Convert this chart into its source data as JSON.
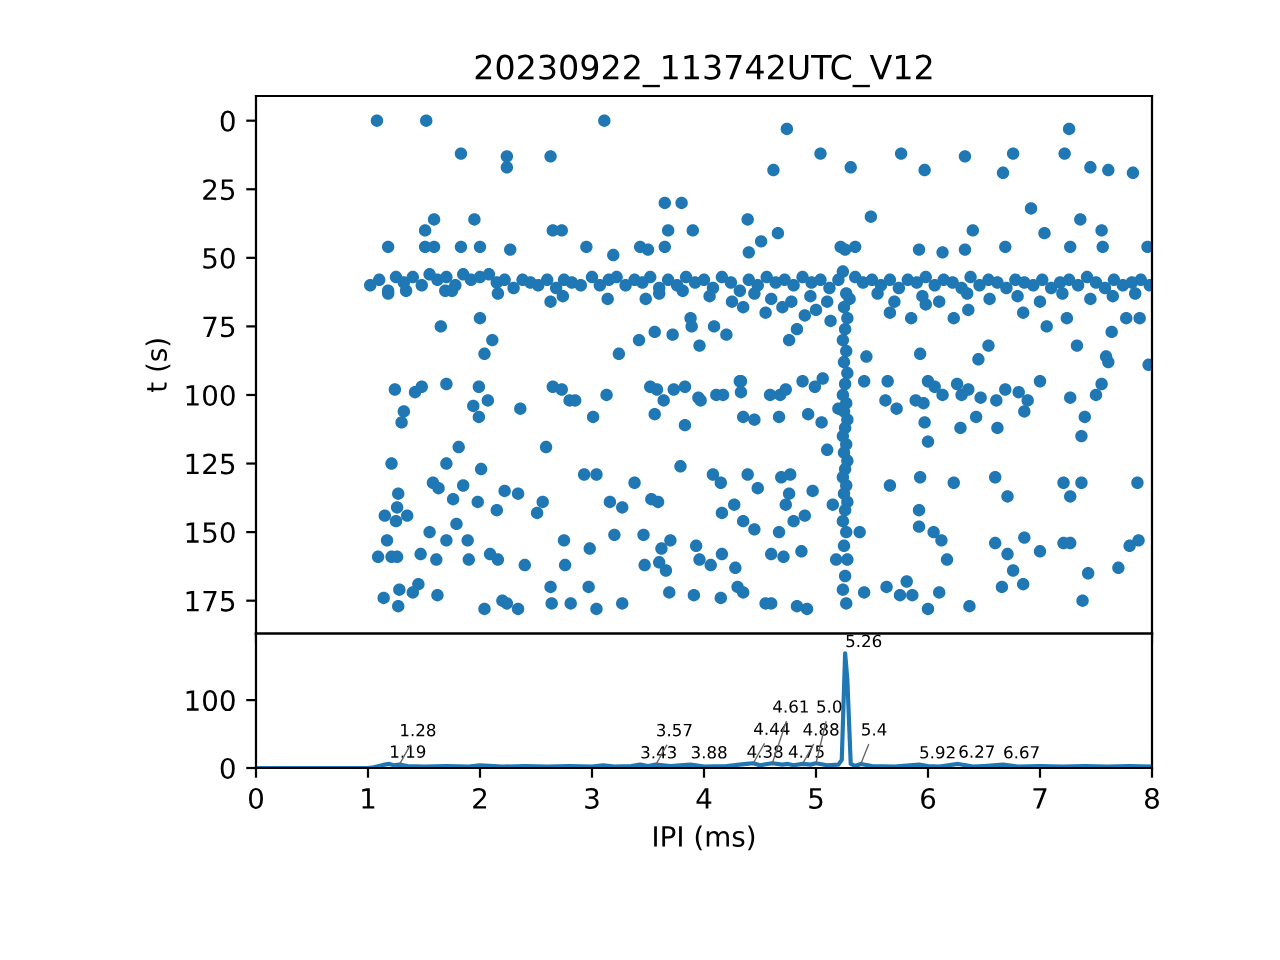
{
  "chart_data": [
    {
      "type": "scatter",
      "title": "20230922_113742UTC_V12",
      "ylabel": "t (s)",
      "marker": "circle",
      "tick_labels": "y",
      "xlim": [
        0,
        8
      ],
      "xticks": [
        0,
        1,
        2,
        3,
        4,
        5,
        6,
        7,
        8
      ],
      "ylim": [
        187,
        -9
      ],
      "yticks": [
        0,
        25,
        50,
        75,
        100,
        125,
        150,
        175
      ],
      "x": [
        1.08,
        1.52,
        3.11,
        1.83,
        2.24,
        2.24,
        2.63,
        1.59,
        1.95,
        1.18,
        1.51,
        1.51,
        1.59,
        1.83,
        2.0,
        2.27,
        2.65,
        2.73,
        2.95,
        3.19,
        3.43,
        3.5,
        3.68,
        3.65,
        3.9,
        3.65,
        1.65,
        2.0,
        2.04,
        2.11,
        3.24,
        3.42,
        3.56,
        3.72,
        3.88,
        3.89,
        2.63,
        3.14,
        3.48,
        1.18,
        1.34,
        1.69,
        1.75,
        2.16,
        2.74,
        3.6,
        3.81,
        4.74,
        5.04,
        4.62,
        5.31,
        5.76,
        5.97,
        6.33,
        6.67,
        6.76,
        7.22,
        7.26,
        7.45,
        7.61,
        7.83,
        3.8,
        4.39,
        5.49,
        6.92,
        7.36,
        7.04,
        7.55,
        6.4,
        4.51,
        4.66,
        4.4,
        5.22,
        5.35,
        5.92,
        6.13,
        6.33,
        6.69,
        7.27,
        7.56,
        7.96,
        5.13,
        5.45,
        5.93,
        6.45,
        6.54,
        7.33,
        7.59,
        7.97,
        4.32,
        3.96,
        4.2,
        4.09,
        4.76,
        4.83,
        5.66,
        5.85,
        5.98,
        6.23,
        6.36,
        6.85,
        7.06,
        7.24,
        7.64,
        7.77,
        7.89,
        1.24,
        1.42,
        1.48,
        1.7,
        1.99,
        2.07,
        1.94,
        1.99,
        1.32,
        1.3,
        1.21,
        1.81,
        2.36,
        2.59,
        2.65,
        2.73,
        2.8,
        2.85,
        3.01,
        3.13,
        3.52,
        3.58,
        3.64,
        3.73,
        3.83,
        3.95,
        3.56,
        3.79,
        3.83,
        1.15,
        1.17,
        1.25,
        1.26,
        1.27,
        1.35,
        1.09,
        1.21,
        1.26,
        1.14,
        1.27,
        1.28,
        1.4,
        1.45,
        1.47,
        1.55,
        1.58,
        1.63,
        1.7,
        1.7,
        1.61,
        1.62,
        1.76,
        1.85,
        1.79,
        1.89,
        1.9,
        1.98,
        2.01,
        2.09,
        2.04,
        2.15,
        2.16,
        2.22,
        2.2,
        2.24,
        2.34,
        2.4,
        2.34,
        2.51,
        2.56,
        2.63,
        2.64,
        2.75,
        2.76,
        2.81,
        2.93,
        2.98,
        2.97,
        3.04,
        3.04,
        3.16,
        3.2,
        3.27,
        3.27,
        3.38,
        3.46,
        3.47,
        3.53,
        3.59,
        3.6,
        3.66,
        3.69,
        3.7,
        3.97,
        4.11,
        4.17,
        4.33,
        4.33,
        4.59,
        4.68,
        4.73,
        4.88,
        4.99,
        5.06,
        4.35,
        4.45,
        4.67,
        4.93,
        5.05,
        5.43,
        5.64,
        5.62,
        5.72,
        5.89,
        5.96,
        5.97,
        6.0,
        6.06,
        6.13,
        6.26,
        6.3,
        6.29,
        6.36,
        6.43,
        6.47,
        6.61,
        6.62,
        6.69,
        6.81,
        6.89,
        6.86,
        7.0,
        7.27,
        7.4,
        7.37,
        7.5,
        7.55,
        7.61,
        6.0,
        4.08,
        4.15,
        4.39,
        4.48,
        4.69,
        4.77,
        4.76,
        4.97,
        4.73,
        4.16,
        4.27,
        4.35,
        4.45,
        4.67,
        4.8,
        4.9,
        5.39,
        3.62,
        3.93,
        3.96,
        4.06,
        4.16,
        4.28,
        4.6,
        4.71,
        4.87,
        5.66,
        5.93,
        5.92,
        5.92,
        6.05,
        6.12,
        6.17,
        6.23,
        6.6,
        6.71,
        6.6,
        6.71,
        6.76,
        6.86,
        6.85,
        7.0,
        7.21,
        7.27,
        7.37,
        7.21,
        7.27,
        7.43,
        7.7,
        7.8,
        7.88,
        7.87,
        3.91,
        4.15,
        4.3,
        4.35,
        4.55,
        4.6,
        4.83,
        4.92,
        5.43,
        5.63,
        5.75,
        5.81,
        5.86,
        6.0,
        6.1,
        6.37,
        6.66,
        7.38,
        5.1,
        5.15,
        5.18,
        5.2,
        1.02,
        1.1,
        1.18,
        1.25,
        1.32,
        1.4,
        1.48,
        1.55,
        1.62,
        1.7,
        1.78,
        1.85,
        1.92,
        2.0,
        2.08,
        2.15,
        2.22,
        2.3,
        2.38,
        2.45,
        2.52,
        2.6,
        2.68,
        2.75,
        2.82,
        2.9,
        3.0,
        3.07,
        3.15,
        3.22,
        3.3,
        3.38,
        3.45,
        3.52,
        3.6,
        3.68,
        3.76,
        3.84,
        3.92,
        4.0,
        4.08,
        4.16,
        4.24,
        4.32,
        4.4,
        4.48,
        4.56,
        4.64,
        4.72,
        4.8,
        4.88,
        4.96,
        5.04,
        5.12,
        5.2,
        5.35,
        5.42,
        5.5,
        5.58,
        5.66,
        5.74,
        5.82,
        5.9,
        5.98,
        6.06,
        6.14,
        6.22,
        6.3,
        6.38,
        6.46,
        6.54,
        6.62,
        6.7,
        6.78,
        6.86,
        6.94,
        7.02,
        7.1,
        7.18,
        7.26,
        7.34,
        7.42,
        7.5,
        7.58,
        7.66,
        7.74,
        7.82,
        7.9,
        7.98,
        4.05,
        4.25,
        4.45,
        4.6,
        4.78,
        4.95,
        5.1,
        5.3,
        5.55,
        5.7,
        5.95,
        6.1,
        6.35,
        6.55,
        6.8,
        7.0,
        7.2,
        7.45,
        7.65,
        7.85,
        4.35,
        4.55,
        4.7,
        4.9,
        5.0,
        5.26,
        5.24,
        5.27,
        5.25,
        5.28,
        5.26,
        5.24,
        5.27,
        5.25,
        5.28,
        5.26,
        5.24,
        5.27,
        5.25,
        5.28,
        5.26,
        5.24,
        5.27,
        5.25,
        5.28,
        5.26,
        5.24,
        5.27,
        5.25,
        5.28,
        5.26,
        5.24,
        5.27,
        5.25,
        5.28,
        5.26,
        5.24,
        5.27
      ],
      "series": [
        {
          "color": "#1f77b4",
          "values": [
            0,
            0,
            0,
            12,
            13,
            17,
            13,
            36,
            36,
            46,
            40,
            46,
            46,
            46,
            46,
            47,
            40,
            40,
            46,
            49,
            46,
            47,
            40,
            30,
            40,
            46,
            75,
            72,
            85,
            80,
            85,
            80,
            77,
            78,
            72,
            75,
            66,
            65,
            65,
            63,
            62,
            62,
            62,
            63,
            64,
            63,
            62,
            3,
            12,
            18,
            17,
            12,
            18,
            13,
            19,
            12,
            12,
            3,
            17,
            18,
            19,
            30,
            36,
            35,
            32,
            36,
            41,
            40,
            40,
            44,
            41,
            48,
            46,
            46,
            47,
            48,
            47,
            46,
            46,
            46,
            46,
            73,
            86,
            85,
            87,
            82,
            82,
            86,
            89,
            95,
            82,
            78,
            75,
            80,
            76,
            70,
            72,
            67,
            72,
            69,
            70,
            75,
            72,
            77,
            72,
            72,
            98,
            99,
            97,
            96,
            97,
            102,
            104,
            108,
            106,
            110,
            125,
            119,
            105,
            119,
            97,
            98,
            102,
            102,
            108,
            100,
            97,
            98,
            102,
            98,
            97,
            101,
            107,
            126,
            111,
            144,
            153,
            146,
            141,
            136,
            144,
            159,
            159,
            159,
            174,
            177,
            171,
            172,
            169,
            158,
            150,
            132,
            134,
            125,
            153,
            160,
            173,
            138,
            133,
            147,
            153,
            160,
            139,
            127,
            158,
            178,
            142,
            160,
            135,
            175,
            176,
            136,
            162,
            178,
            143,
            139,
            170,
            176,
            153,
            162,
            176,
            129,
            156,
            170,
            129,
            178,
            139,
            151,
            141,
            176,
            132,
            151,
            162,
            138,
            139,
            161,
            164,
            172,
            153,
            102,
            100,
            100,
            95,
            99,
            100,
            100,
            98,
            95,
            97,
            94,
            108,
            109,
            108,
            107,
            110,
            95,
            95,
            102,
            105,
            102,
            103,
            110,
            95,
            97,
            100,
            96,
            100,
            112,
            98,
            108,
            101,
            102,
            112,
            98,
            99,
            102,
            106,
            95,
            101,
            108,
            115,
            100,
            96,
            88,
            117,
            129,
            132,
            129,
            134,
            130,
            129,
            136,
            135,
            140,
            143,
            140,
            146,
            149,
            150,
            146,
            144,
            150,
            156,
            155,
            160,
            162,
            158,
            163,
            158,
            159,
            157,
            133,
            130,
            142,
            148,
            150,
            153,
            160,
            132,
            130,
            137,
            154,
            158,
            164,
            152,
            169,
            157,
            132,
            137,
            132,
            154,
            154,
            165,
            163,
            155,
            153,
            132,
            173,
            174,
            170,
            172,
            176,
            176,
            177,
            178,
            172,
            170,
            173,
            168,
            173,
            178,
            172,
            177,
            170,
            175,
            120,
            140,
            160,
            105,
            60,
            58,
            62,
            57,
            59,
            57,
            60,
            56,
            58,
            57,
            60,
            56,
            58,
            57,
            56,
            59,
            58,
            61,
            58,
            59,
            60,
            58,
            61,
            58,
            59,
            60,
            57,
            60,
            58,
            57,
            60,
            58,
            59,
            57,
            61,
            58,
            60,
            57,
            59,
            58,
            61,
            57,
            59,
            62,
            58,
            60,
            57,
            59,
            58,
            60,
            57,
            59,
            58,
            61,
            58,
            57,
            59,
            58,
            60,
            58,
            61,
            58,
            59,
            57,
            60,
            58,
            59,
            61,
            57,
            60,
            58,
            59,
            61,
            58,
            59,
            60,
            58,
            61,
            59,
            58,
            60,
            57,
            59,
            61,
            58,
            60,
            59,
            58,
            60,
            64,
            66,
            63,
            65,
            66,
            64,
            66,
            65,
            63,
            66,
            64,
            66,
            63,
            65,
            64,
            66,
            63,
            65,
            64,
            63,
            68,
            70,
            68,
            71,
            69,
            47,
            55,
            63,
            68,
            72,
            76,
            80,
            84,
            88,
            92,
            96,
            100,
            103,
            106,
            109,
            112,
            115,
            118,
            121,
            124,
            127,
            130,
            133,
            136,
            139,
            142,
            146,
            150,
            155,
            160,
            166,
            171,
            176
          ]
        }
      ]
    },
    {
      "type": "line",
      "xlabel": "IPI (ms)",
      "line_style": "solid",
      "xlim": [
        0,
        8
      ],
      "xticks": [
        0,
        1,
        2,
        3,
        4,
        5,
        6,
        7,
        8
      ],
      "ylim": [
        0,
        198
      ],
      "yticks": [
        0,
        100
      ],
      "x": [
        0,
        1.0,
        1.05,
        1.1,
        1.15,
        1.19,
        1.23,
        1.28,
        1.35,
        1.5,
        1.7,
        1.9,
        2.0,
        2.2,
        2.4,
        2.6,
        2.8,
        3.0,
        3.1,
        3.2,
        3.35,
        3.43,
        3.5,
        3.57,
        3.7,
        3.88,
        4.0,
        4.2,
        4.38,
        4.44,
        4.5,
        4.61,
        4.7,
        4.75,
        4.8,
        4.88,
        4.95,
        5.0,
        5.1,
        5.2,
        5.23,
        5.26,
        5.28,
        5.31,
        5.35,
        5.4,
        5.5,
        5.7,
        5.92,
        6.0,
        6.1,
        6.27,
        6.4,
        6.5,
        6.67,
        6.8,
        7.0,
        7.2,
        7.4,
        7.6,
        7.8,
        8.0
      ],
      "series": [
        {
          "color": "#1f77b4",
          "values": [
            0,
            0,
            1,
            3,
            5,
            6,
            4,
            5,
            3,
            2,
            3,
            2,
            4,
            2,
            3,
            2,
            3,
            2,
            4,
            2,
            3,
            5,
            3,
            5,
            3,
            5,
            2,
            3,
            6,
            7,
            4,
            7,
            5,
            6,
            4,
            6,
            5,
            7,
            4,
            5,
            12,
            169,
            130,
            6,
            3,
            6,
            3,
            2,
            5,
            3,
            2,
            6,
            2,
            3,
            5,
            2,
            3,
            2,
            3,
            2,
            3,
            2
          ]
        }
      ],
      "annotations": [
        {
          "text": "1.19",
          "x": 1.19,
          "y": 6
        },
        {
          "text": "1.28",
          "x": 1.28,
          "y": 5
        },
        {
          "text": "3.43",
          "x": 3.43,
          "y": 5
        },
        {
          "text": "3.57",
          "x": 3.57,
          "y": 5
        },
        {
          "text": "3.88",
          "x": 3.88,
          "y": 5
        },
        {
          "text": "4.38",
          "x": 4.38,
          "y": 6
        },
        {
          "text": "4.44",
          "x": 4.44,
          "y": 7
        },
        {
          "text": "4.61",
          "x": 4.61,
          "y": 7
        },
        {
          "text": "4.75",
          "x": 4.75,
          "y": 6
        },
        {
          "text": "4.88",
          "x": 4.88,
          "y": 6
        },
        {
          "text": "5.0",
          "x": 5.0,
          "y": 7
        },
        {
          "text": "5.26",
          "x": 5.26,
          "y": 169
        },
        {
          "text": "5.4",
          "x": 5.4,
          "y": 6
        },
        {
          "text": "5.92",
          "x": 5.92,
          "y": 5
        },
        {
          "text": "6.27",
          "x": 6.27,
          "y": 6
        },
        {
          "text": "6.67",
          "x": 6.67,
          "y": 5
        }
      ]
    }
  ]
}
